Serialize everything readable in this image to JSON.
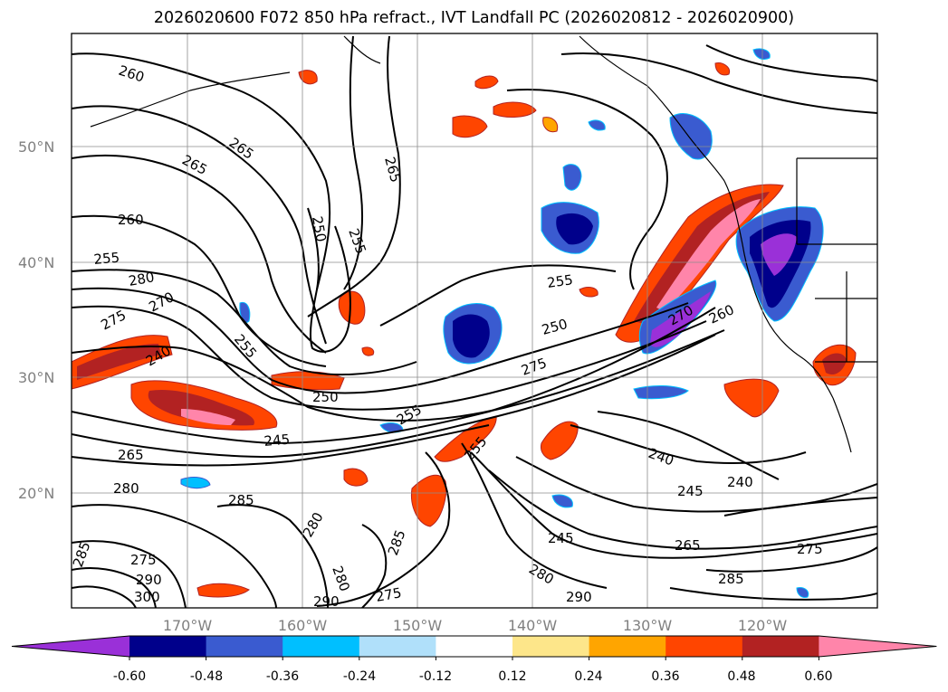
{
  "title": "2026020600 F072 850 hPa refract., IVT Landfall PC (2026020812 - 2026020900)",
  "lat_labels": [
    "20°N",
    "30°N",
    "40°N",
    "50°N"
  ],
  "lon_labels": [
    "170°W",
    "160°W",
    "150°W",
    "140°W",
    "130°W",
    "120°W"
  ],
  "contour_labels": [
    "260",
    "265",
    "265",
    "265",
    "260",
    "255",
    "250",
    "255",
    "280",
    "270",
    "275",
    "240",
    "255",
    "250",
    "245",
    "265",
    "280",
    "285",
    "280",
    "275",
    "290",
    "300",
    "285",
    "280",
    "285",
    "275",
    "290",
    "255",
    "250",
    "275",
    "270",
    "260",
    "255",
    "255",
    "240",
    "240",
    "245",
    "245",
    "265",
    "275",
    "285",
    "280",
    "290"
  ],
  "colorbar": {
    "tick_labels": [
      "-0.60",
      "-0.48",
      "-0.36",
      "-0.24",
      "-0.12",
      "0.12",
      "0.24",
      "0.36",
      "0.48",
      "0.60"
    ],
    "colors": [
      "#9a30d8",
      "#00008b",
      "#3a5bd0",
      "#00bfff",
      "#b0e0fa",
      "#ffffff",
      "#fde68a",
      "#ffa500",
      "#ff4500",
      "#b22222",
      "#ff85aa"
    ]
  },
  "fill_colors": {
    "pink": "#ff85aa",
    "red": "#b22222",
    "orange_red": "#ff4500",
    "orange": "#ffa500",
    "yellow": "#fde68a",
    "purple": "#9a30d8",
    "navy": "#00008b",
    "blue": "#3a5bd0",
    "cyan": "#00bfff",
    "light_blue": "#b0e0fa"
  }
}
